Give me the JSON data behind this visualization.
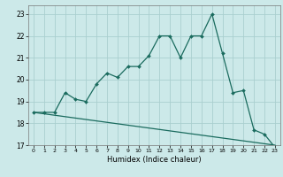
{
  "xlabel": "Humidex (Indice chaleur)",
  "bg_color": "#cce9e9",
  "grid_color": "#aacfcf",
  "line_color": "#1a6b5e",
  "xlim": [
    -0.5,
    23.5
  ],
  "ylim": [
    17,
    23.4
  ],
  "yticks": [
    17,
    18,
    19,
    20,
    21,
    22,
    23
  ],
  "xticks": [
    0,
    1,
    2,
    3,
    4,
    5,
    6,
    7,
    8,
    9,
    10,
    11,
    12,
    13,
    14,
    15,
    16,
    17,
    18,
    19,
    20,
    21,
    22,
    23
  ],
  "curve1_x": [
    0,
    1,
    2,
    3,
    4,
    5,
    6,
    7,
    8,
    9,
    10,
    11,
    12,
    13,
    14,
    15,
    16,
    17,
    18,
    19,
    20,
    21,
    22,
    23
  ],
  "curve1_y": [
    18.5,
    18.5,
    18.5,
    19.4,
    19.1,
    19.0,
    19.8,
    20.3,
    20.1,
    20.6,
    20.6,
    21.1,
    22.0,
    22.0,
    21.0,
    22.0,
    22.0,
    23.0,
    21.2,
    19.4,
    19.5,
    17.7,
    17.5,
    16.9
  ],
  "curve2_x": [
    0,
    23
  ],
  "curve2_y": [
    18.5,
    17.0
  ]
}
